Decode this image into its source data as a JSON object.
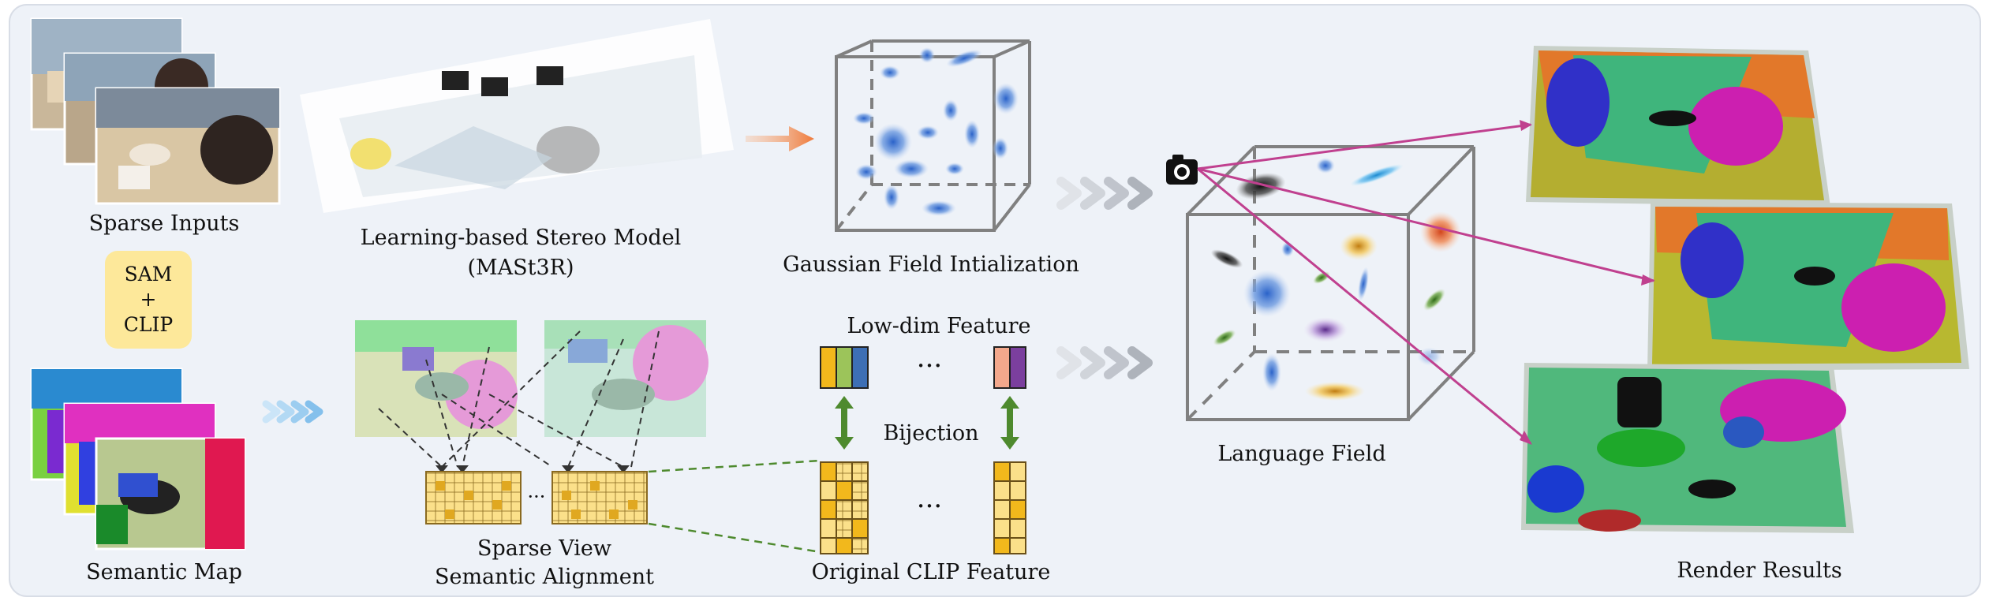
{
  "labels": {
    "sparse_inputs": "Sparse Inputs",
    "semantic_map": "Semantic Map",
    "stereo_model_line1": "Learning-based Stereo Model",
    "stereo_model_line2": "(MASt3R)",
    "gaussian_init": "Gaussian Field Intialization",
    "low_dim_feature": "Low-dim Feature",
    "bijection": "Bijection",
    "original_clip": "Original CLIP Feature",
    "alignment_line1": "Sparse View",
    "alignment_line2": "Semantic Alignment",
    "language_field": "Language Field",
    "render_results": "Render Results",
    "ellipsis_top": "···",
    "ellipsis_bottom": "···",
    "ellipsis_grid": "···"
  },
  "sam_box": {
    "line1": "SAM",
    "line2": "+",
    "line3": "CLIP"
  },
  "colors": {
    "panel_bg": "#eef2f8",
    "sam_box": "#fde89a",
    "arrow_orange": "#f0884a",
    "arrow_blue": "#8fc8ee",
    "arrow_gray": "#b8bcc4",
    "bijection_green": "#4e8a2e",
    "projection_magenta": "#c0408f",
    "grid_fill": "#fbe08a",
    "grid_dark": "#e0a820",
    "feature_yellow": "#f2b81c",
    "feature_green": "#9cc45a",
    "feature_blue": "#3d6fb5",
    "feature_peach": "#f3a88c",
    "feature_purple": "#7b3f9e"
  },
  "icons": [
    "camera-icon"
  ]
}
